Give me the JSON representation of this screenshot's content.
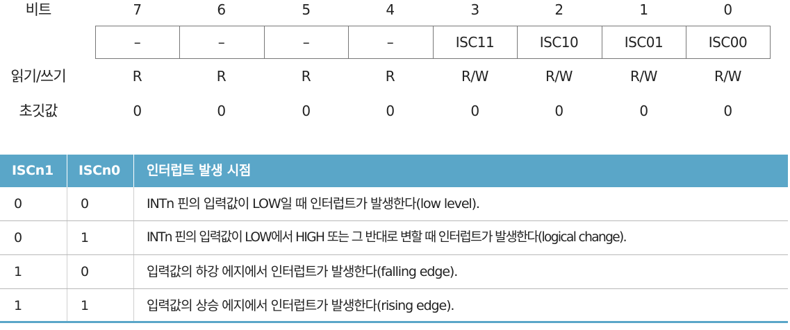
{
  "register": {
    "labels": {
      "bit": "비트",
      "rw": "읽기/쓰기",
      "init": "초깃값"
    },
    "bits": [
      "7",
      "6",
      "5",
      "4",
      "3",
      "2",
      "1",
      "0"
    ],
    "names": [
      "–",
      "–",
      "–",
      "–",
      "ISC11",
      "ISC10",
      "ISC01",
      "ISC00"
    ],
    "rw": [
      "R",
      "R",
      "R",
      "R",
      "R/W",
      "R/W",
      "R/W",
      "R/W"
    ],
    "init": [
      "0",
      "0",
      "0",
      "0",
      "0",
      "0",
      "0",
      "0"
    ]
  },
  "isc_table": {
    "headers": [
      "ISCn1",
      "ISCn0",
      "인터럽트 발생 시점"
    ],
    "rows": [
      [
        "0",
        "0",
        "INTn 핀의 입력값이 LOW일 때 인터럽트가 발생한다(low level)."
      ],
      [
        "0",
        "1",
        "INTn 핀의 입력값이 LOW에서 HIGH 또는 그 반대로 변할 때 인터럽트가 발생한다(logical change)."
      ],
      [
        "1",
        "0",
        "입력값의 하강 에지에서 인터럽트가 발생한다(falling edge)."
      ],
      [
        "1",
        "1",
        "입력값의 상승 에지에서 인터럽트가 발생한다(rising edge)."
      ]
    ]
  },
  "colors": {
    "header_bg": "#5aa6c8",
    "header_text": "#ffffff",
    "border": "#777777"
  }
}
